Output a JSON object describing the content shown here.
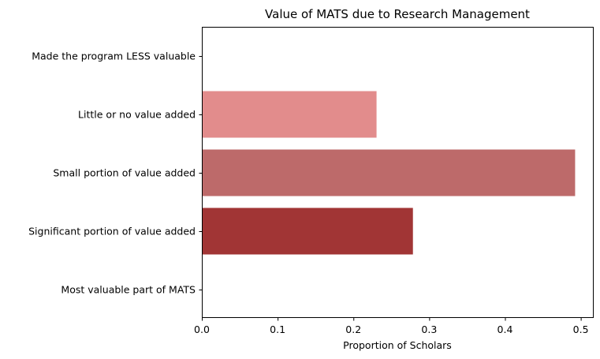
{
  "chart_data": {
    "type": "bar",
    "orientation": "horizontal",
    "title": "Value of MATS due to Research Management",
    "xlabel": "Proportion of Scholars",
    "ylabel": "",
    "xlim": [
      0,
      0.516
    ],
    "xticks": [
      "0.0",
      "0.1",
      "0.2",
      "0.3",
      "0.4",
      "0.5"
    ],
    "grid": false,
    "categories": [
      "Made the program LESS valuable",
      "Little or no value added",
      "Small portion of value added",
      "Significant portion of value added",
      "Most valuable part of MATS"
    ],
    "values": [
      0,
      0.23,
      0.492,
      0.278,
      0
    ],
    "colors": [
      "#f3b9b9",
      "#e28c8c",
      "#bd6a6a",
      "#a13535",
      "#7a1f1f"
    ]
  }
}
